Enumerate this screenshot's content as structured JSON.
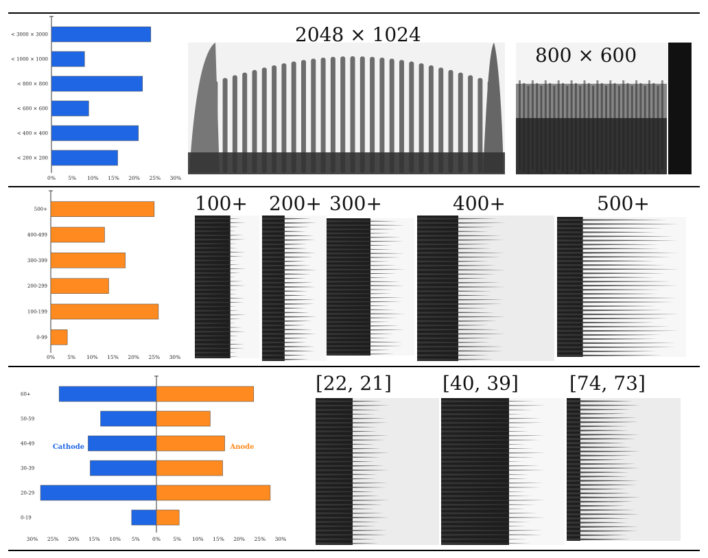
{
  "colors": {
    "blue": "#1f66e5",
    "orange": "#ff8a1f",
    "cathode_text": "#1f66e5",
    "anode_text": "#ff8a1f"
  },
  "chart_data": [
    {
      "type": "bar",
      "orientation": "horizontal",
      "categories": [
        "< 200 × 200",
        "< 400 × 400",
        "< 600 × 600",
        "< 800 × 800",
        "< 1000 × 1000",
        "< 3000 × 3000"
      ],
      "values": [
        16,
        21,
        9,
        22,
        8,
        24
      ],
      "xlim": [
        0,
        30
      ],
      "xticks": [
        "0%",
        "5%",
        "10%",
        "15%",
        "20%",
        "25%",
        "30%"
      ],
      "color": "#1f66e5",
      "grid": false
    },
    {
      "type": "bar",
      "orientation": "horizontal",
      "categories": [
        "0-99",
        "100-199",
        "200-299",
        "300-399",
        "400-499",
        "500+"
      ],
      "values": [
        4,
        26,
        14,
        18,
        13,
        25
      ],
      "xlim": [
        0,
        30
      ],
      "xticks": [
        "0%",
        "5%",
        "10%",
        "15%",
        "20%",
        "25%",
        "30%"
      ],
      "color": "#ff8a1f",
      "grid": false
    },
    {
      "type": "bar",
      "orientation": "diverging",
      "categories": [
        "0-19",
        "20-29",
        "30-39",
        "40-49",
        "50-59",
        "60+"
      ],
      "series": [
        {
          "name": "Cathode",
          "values": [
            6,
            28,
            16,
            16.5,
            13.5,
            23.5
          ],
          "color": "#1f66e5",
          "side": "left"
        },
        {
          "name": "Anode",
          "values": [
            5.5,
            27.5,
            16,
            16.5,
            13,
            23.5
          ],
          "color": "#ff8a1f",
          "side": "right"
        }
      ],
      "xlim": [
        -30,
        30
      ],
      "xticks": [
        "30%",
        "25%",
        "20%",
        "15%",
        "10%",
        "5%",
        "0%",
        "5%",
        "10%",
        "15%",
        "20%",
        "25%",
        "30%"
      ],
      "grid": false
    }
  ],
  "panels": {
    "row1": [
      "2048 × 1024",
      "800 × 600"
    ],
    "row2": [
      "100+",
      "200+",
      "300+",
      "400+",
      "500+"
    ],
    "row3": [
      "[22, 21]",
      "[40, 39]",
      "[74, 73]"
    ]
  },
  "legend": {
    "cathode": "Cathode",
    "anode": "Anode"
  }
}
